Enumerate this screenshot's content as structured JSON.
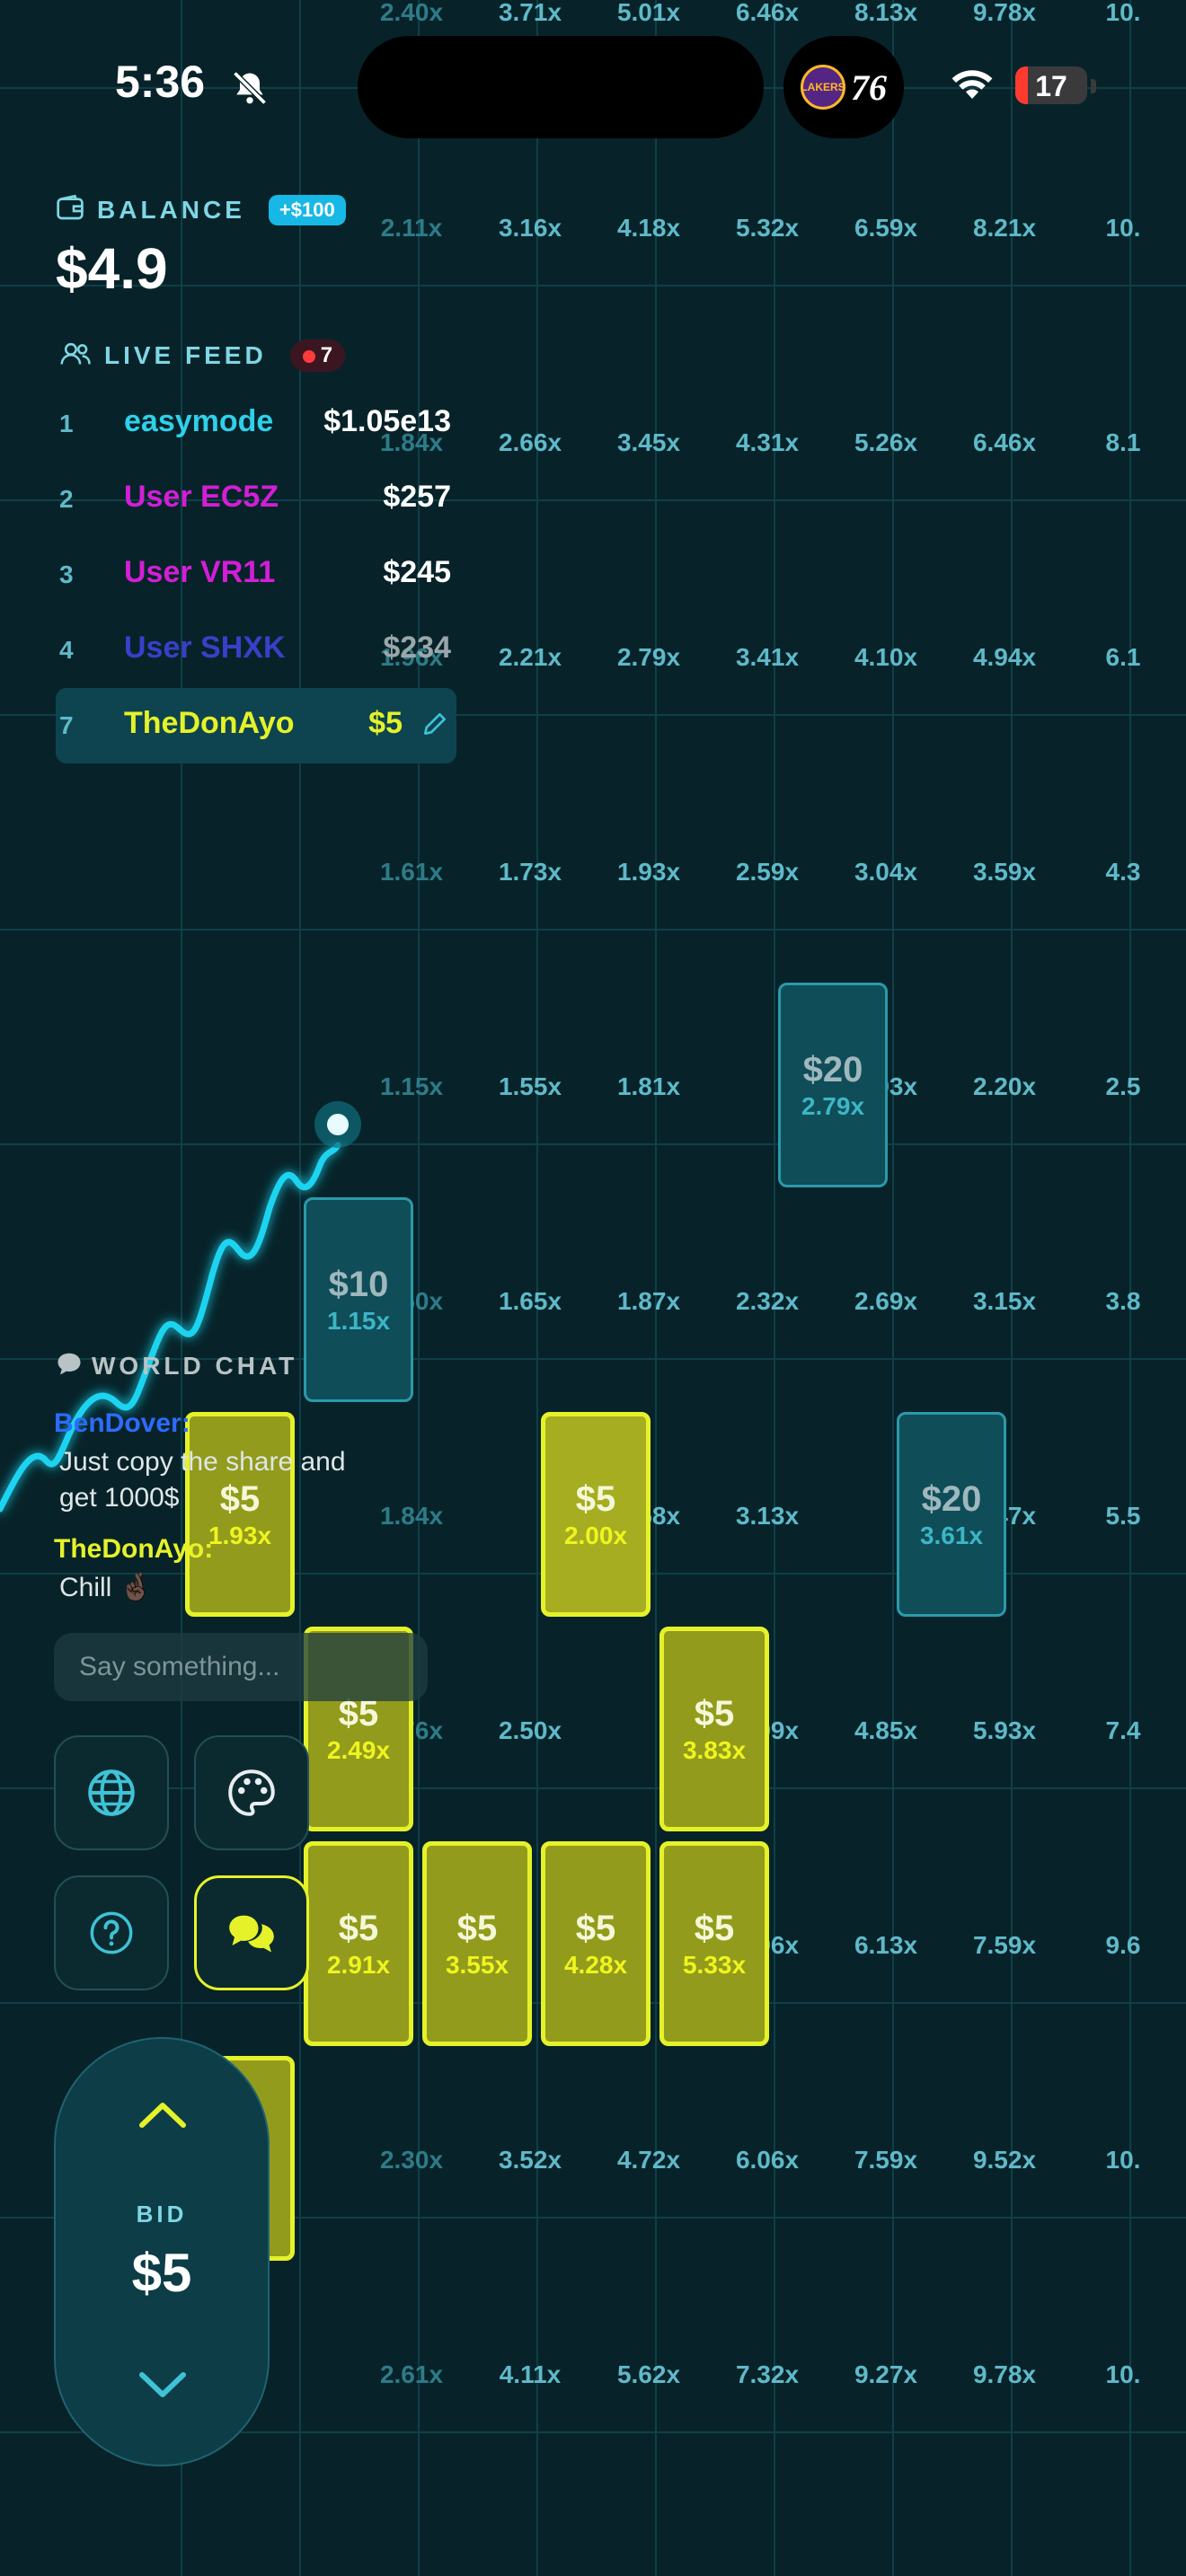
{
  "status_bar": {
    "time": "5:36",
    "battery": "17",
    "battery_fraction": 0.17,
    "game_teams": [
      "LAKERS",
      "76"
    ]
  },
  "balance": {
    "label": "BALANCE",
    "badge": "+$100",
    "value": "$4.9"
  },
  "live_feed": {
    "label": "LIVE FEED",
    "count": "7",
    "rows": [
      {
        "rank": "1",
        "name": "easymode",
        "amount": "$1.05e13",
        "color": "#2fd0ea"
      },
      {
        "rank": "2",
        "name": "User EC5Z",
        "amount": "$257",
        "color": "#d31ed6"
      },
      {
        "rank": "3",
        "name": "User VR11",
        "amount": "$245",
        "color": "#d31ed6"
      },
      {
        "rank": "4",
        "name": "User SHXK",
        "amount": "$234",
        "color": "#3a3fc9"
      },
      {
        "rank": "7",
        "name": "TheDonAyo",
        "amount": "$5",
        "color": "#e5f22a"
      }
    ]
  },
  "multiplier_grid": {
    "rows": [
      [
        "2.40x",
        "3.71x",
        "5.01x",
        "6.46x",
        "8.13x",
        "9.78x",
        "10."
      ],
      [
        "2.11x",
        "3.16x",
        "4.18x",
        "5.32x",
        "6.59x",
        "8.21x",
        "10."
      ],
      [
        "1.84x",
        "2.66x",
        "3.45x",
        "4.31x",
        "5.26x",
        "6.46x",
        "8.1"
      ],
      [
        "1.96x",
        "2.21x",
        "2.79x",
        "3.41x",
        "4.10x",
        "4.94x",
        "6.1"
      ],
      [
        "1.61x",
        "1.73x",
        "1.93x",
        "2.59x",
        "3.04x",
        "3.59x",
        "4.3"
      ],
      [
        "1.15x",
        "1.55x",
        "1.81x",
        "",
        "1.93x",
        "2.20x",
        "2.5"
      ],
      [
        "1.50x",
        "1.65x",
        "1.87x",
        "2.32x",
        "2.69x",
        "3.15x",
        "3.8"
      ],
      [
        "1.84x",
        "",
        "2.58x",
        "3.13x",
        "",
        "4.47x",
        "5.5"
      ],
      [
        "1.76x",
        "2.50x",
        "",
        "3.99x",
        "4.85x",
        "5.93x",
        "7.4"
      ],
      [
        "",
        "",
        "",
        "4.96x",
        "6.13x",
        "7.59x",
        "9.6"
      ],
      [
        "2.30x",
        "3.52x",
        "4.72x",
        "6.06x",
        "7.59x",
        "9.52x",
        "10."
      ],
      [
        "2.61x",
        "4.11x",
        "5.62x",
        "7.32x",
        "9.27x",
        "9.78x",
        "10."
      ]
    ],
    "dim_first_column": true
  },
  "bets": [
    {
      "amount": "$20",
      "mult": "2.79x",
      "style": "teal",
      "col": 6,
      "row": 5
    },
    {
      "amount": "$10",
      "mult": "1.15x",
      "style": "teal",
      "col": 2,
      "row": 6
    },
    {
      "amount": "$20",
      "mult": "3.61x",
      "style": "teal",
      "col": 7,
      "row": 7
    },
    {
      "amount": "$5",
      "mult": "1.93x",
      "style": "yellow",
      "col": 1,
      "row": 7
    },
    {
      "amount": "$5",
      "mult": "2.00x",
      "style": "yellow-bright",
      "col": 4,
      "row": 7
    },
    {
      "amount": "$5",
      "mult": "2.49x",
      "style": "yellow",
      "col": 2,
      "row": 8
    },
    {
      "amount": "$5",
      "mult": "3.83x",
      "style": "yellow",
      "col": 5,
      "row": 8
    },
    {
      "amount": "$5",
      "mult": "2.91x",
      "style": "yellow",
      "col": 2,
      "row": 9
    },
    {
      "amount": "$5",
      "mult": "3.55x",
      "style": "yellow",
      "col": 3,
      "row": 9
    },
    {
      "amount": "$5",
      "mult": "4.28x",
      "style": "yellow",
      "col": 4,
      "row": 9
    },
    {
      "amount": "$5",
      "mult": "5.33x",
      "style": "yellow",
      "col": 5,
      "row": 9
    },
    {
      "amount": "",
      "mult": "",
      "style": "yellow",
      "col": 1,
      "row": 10
    }
  ],
  "world_chat": {
    "title": "WORLD CHAT",
    "messages": [
      {
        "user": "BenDover:",
        "user_color": "#2d6bff",
        "text1": "Just copy the share and",
        "text2": "get 1000$"
      },
      {
        "user": "TheDonAyo:",
        "user_color": "#e5f22a",
        "text1": "Chill 🤞🏿",
        "text2": ""
      }
    ],
    "input_placeholder": "Say something..."
  },
  "controls": {
    "globe": "globe-icon",
    "palette": "palette-icon",
    "help": "help-icon",
    "chat": "chat-icon"
  },
  "bid": {
    "label": "BID",
    "value": "$5"
  },
  "colors": {
    "accent_yellow": "#e5f22a",
    "accent_cyan": "#2fd0ea",
    "background": "#072329"
  }
}
